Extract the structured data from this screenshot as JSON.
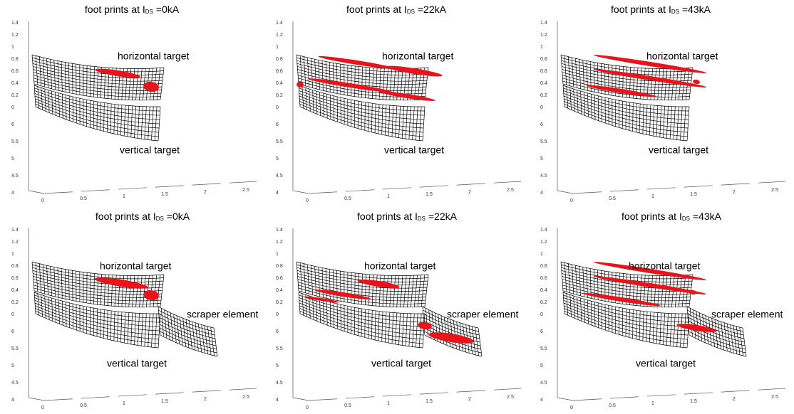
{
  "panels": [
    {
      "title": {
        "prefix": "foot prints at I",
        "sub": "DS",
        "suffix": " =0kA"
      },
      "labels": {
        "horizontal": "horizontal target",
        "vertical": "vertical target"
      },
      "zticks": [
        "1.4",
        "1.2",
        "1",
        "0.8",
        "0.6",
        "0.4",
        "0.2",
        "0"
      ],
      "yticks": [
        "6",
        "5.5",
        "5",
        "4.5",
        "4"
      ],
      "xticks": [
        "0",
        "0.5",
        "1",
        "1.5",
        "2",
        "2.5"
      ]
    },
    {
      "title": {
        "prefix": "foot prints at I",
        "sub": "DS",
        "suffix": " =22kA"
      },
      "labels": {
        "horizontal": "horizontal target",
        "vertical": "vertical target"
      },
      "zticks": [
        "1.4",
        "1.2",
        "1",
        "0.8",
        "0.6",
        "0.4",
        "0.2",
        "0"
      ],
      "yticks": [
        "6",
        "5.5",
        "5",
        "4.5",
        "4"
      ],
      "xticks": [
        "0",
        "0.5",
        "1",
        "1.5",
        "2",
        "2.5"
      ]
    },
    {
      "title": {
        "prefix": "foot prints at I",
        "sub": "DS",
        "suffix": " =43kA"
      },
      "labels": {
        "horizontal": "horizontal target",
        "vertical": "vertical target"
      },
      "zticks": [
        "1.4",
        "1.2",
        "1",
        "0.8",
        "0.6",
        "0.4",
        "0.2",
        "0"
      ],
      "yticks": [
        "6",
        "5.5",
        "5",
        "4.5",
        "4"
      ],
      "xticks": [
        "0",
        "0.5",
        "1",
        "1.5",
        "2",
        "2.5"
      ]
    },
    {
      "title": {
        "prefix": "foot prints at I",
        "sub": "DS",
        "suffix": " =0kA"
      },
      "labels": {
        "horizontal": "horizontal target",
        "vertical": "vertical target",
        "scraper": "scraper element"
      },
      "zticks": [
        "1.4",
        "1.2",
        "1",
        "0.8",
        "0.6",
        "0.4",
        "0.2",
        "0"
      ],
      "yticks": [
        "6",
        "5.5",
        "5",
        "4.5",
        "4"
      ],
      "xticks": [
        "0",
        "0.5",
        "1",
        "1.5",
        "2",
        "2.5"
      ]
    },
    {
      "title": {
        "prefix": "foot prints at I",
        "sub": "DS",
        "suffix": " =22kA"
      },
      "labels": {
        "horizontal": "horizontal target",
        "vertical": "vertical target",
        "scraper": "scraper element"
      },
      "zticks": [
        "1.4",
        "1.2",
        "1",
        "0.8",
        "0.6",
        "0.4",
        "0.2",
        "0"
      ],
      "yticks": [
        "6",
        "5.5",
        "5",
        "4.5",
        "4"
      ],
      "xticks": [
        "0",
        "0.5",
        "1",
        "1.5",
        "2",
        "2.5"
      ]
    },
    {
      "title": {
        "prefix": "foot prints at I",
        "sub": "DS",
        "suffix": " =43kA"
      },
      "labels": {
        "horizontal": "horizontal target",
        "vertical": "vertical target",
        "scraper": "scraper element"
      },
      "zticks": [
        "1.4",
        "1.2",
        "1",
        "0.8",
        "0.6",
        "0.4",
        "0.2",
        "0"
      ],
      "yticks": [
        "6",
        "5.5",
        "5",
        "4.5",
        "4"
      ],
      "xticks": [
        "0",
        "0.5",
        "1",
        "1.5",
        "2",
        "2.5"
      ]
    }
  ]
}
